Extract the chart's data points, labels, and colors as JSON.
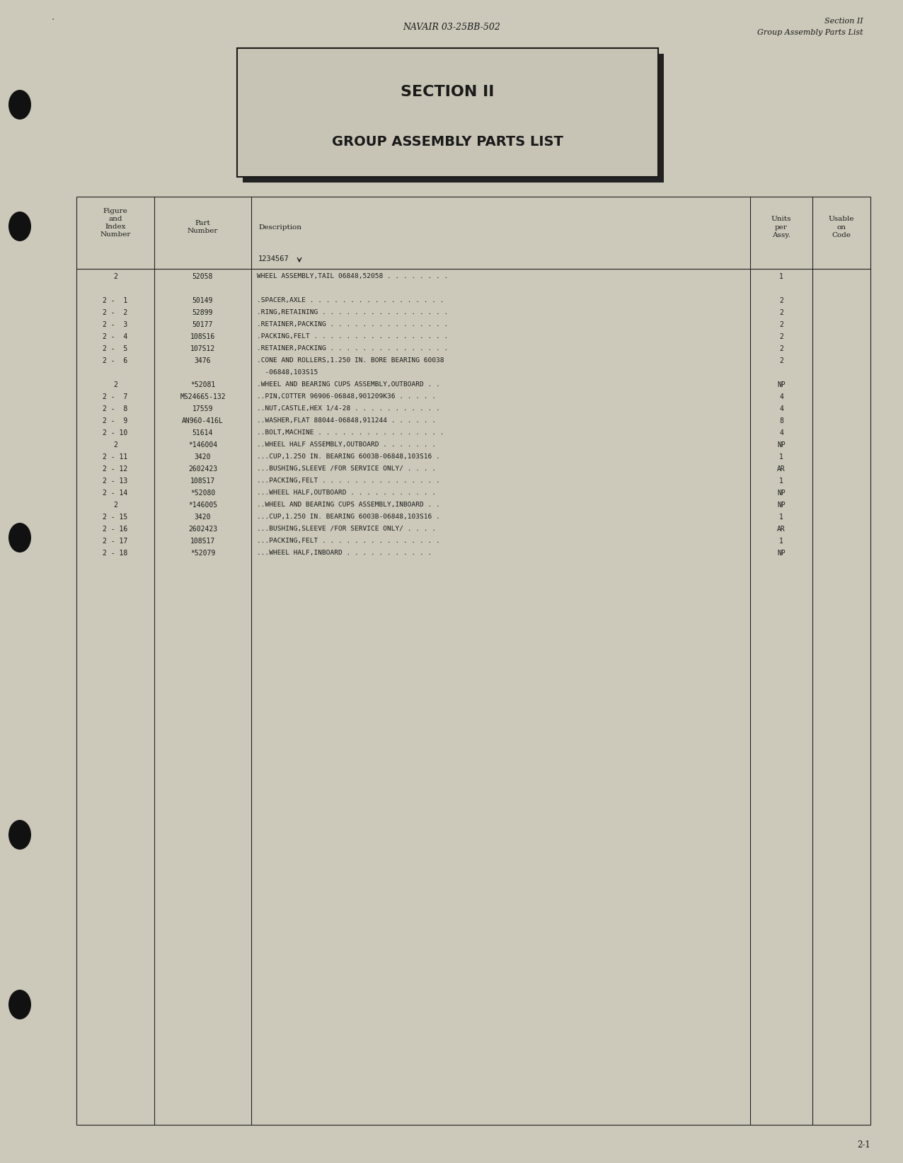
{
  "bg_color": "#ccc9ba",
  "header_center": "NAVAIR 03-25BB-502",
  "header_right_line1": "Section II",
  "header_right_line2": "Group Assembly Parts List",
  "section_box_title": "SECTION II",
  "section_box_subtitle": "GROUP ASSEMBLY PARTS LIST",
  "footer_text": "2-1",
  "table_rows": [
    {
      "fig": "2",
      "part": "52058",
      "desc": "WHEEL ASSEMBLY,TAIL 06848,52058 . . . . . . . .",
      "units": "1",
      "usable": ""
    },
    {
      "fig": "",
      "part": "",
      "desc": "",
      "units": "",
      "usable": ""
    },
    {
      "fig": "2 -  1",
      "part": "50149",
      "desc": ".SPACER,AXLE . . . . . . . . . . . . . . . . .",
      "units": "2",
      "usable": ""
    },
    {
      "fig": "2 -  2",
      "part": "52899",
      "desc": ".RING,RETAINING . . . . . . . . . . . . . . . .",
      "units": "2",
      "usable": ""
    },
    {
      "fig": "2 -  3",
      "part": "50177",
      "desc": ".RETAINER,PACKING . . . . . . . . . . . . . . .",
      "units": "2",
      "usable": ""
    },
    {
      "fig": "2 -  4",
      "part": "108S16",
      "desc": ".PACKING,FELT . . . . . . . . . . . . . . . . .",
      "units": "2",
      "usable": ""
    },
    {
      "fig": "2 -  5",
      "part": "107S12",
      "desc": ".RETAINER,PACKING . . . . . . . . . . . . . . .",
      "units": "2",
      "usable": ""
    },
    {
      "fig": "2 -  6",
      "part": "3476",
      "desc": ".CONE AND ROLLERS,1.250 IN. BORE BEARING 60038",
      "units": "2",
      "usable": ""
    },
    {
      "fig": "",
      "part": "",
      "desc": "  -06848,103S15",
      "units": "",
      "usable": ""
    },
    {
      "fig": "2",
      "part": "*52081",
      "desc": ".WHEEL AND BEARING CUPS ASSEMBLY,OUTBOARD . .",
      "units": "NP",
      "usable": ""
    },
    {
      "fig": "2 -  7",
      "part": "MS24665-132",
      "desc": "..PIN,COTTER 96906-06848,901209K36 . . . . .",
      "units": "4",
      "usable": ""
    },
    {
      "fig": "2 -  8",
      "part": "17559",
      "desc": "..NUT,CASTLE,HEX 1/4-28 . . . . . . . . . . .",
      "units": "4",
      "usable": ""
    },
    {
      "fig": "2 -  9",
      "part": "AN960-416L",
      "desc": "..WASHER,FLAT 88044-06848,911244 . . . . . .",
      "units": "8",
      "usable": ""
    },
    {
      "fig": "2 - 10",
      "part": "51614",
      "desc": "..BOLT,MACHINE . . . . . . . . . . . . . . . .",
      "units": "4",
      "usable": ""
    },
    {
      "fig": "2",
      "part": "*146004",
      "desc": "..WHEEL HALF ASSEMBLY,OUTBOARD . . . . . . .",
      "units": "NP",
      "usable": ""
    },
    {
      "fig": "2 - 11",
      "part": "3420",
      "desc": "...CUP,1.250 IN. BEARING 6003B-06848,103S16 .",
      "units": "1",
      "usable": ""
    },
    {
      "fig": "2 - 12",
      "part": "2602423",
      "desc": "...BUSHING,SLEEVE /FOR SERVICE ONLY/ . . . .",
      "units": "AR",
      "usable": ""
    },
    {
      "fig": "2 - 13",
      "part": "108S17",
      "desc": "...PACKING,FELT . . . . . . . . . . . . . . .",
      "units": "1",
      "usable": ""
    },
    {
      "fig": "2 - 14",
      "part": "*52080",
      "desc": "...WHEEL HALF,OUTBOARD . . . . . . . . . . .",
      "units": "NP",
      "usable": ""
    },
    {
      "fig": "2",
      "part": "*146005",
      "desc": "..WHEEL AND BEARING CUPS ASSEMBLY,INBOARD . .",
      "units": "NP",
      "usable": ""
    },
    {
      "fig": "2 - 15",
      "part": "3420",
      "desc": "...CUP,1.250 IN. BEARING 6003B-06848,103S16 .",
      "units": "1",
      "usable": ""
    },
    {
      "fig": "2 - 16",
      "part": "2602423",
      "desc": "...BUSHING,SLEEVE /FOR SERVICE ONLY/ . . . .",
      "units": "AR",
      "usable": ""
    },
    {
      "fig": "2 - 17",
      "part": "108S17",
      "desc": "...PACKING,FELT . . . . . . . . . . . . . . .",
      "units": "1",
      "usable": ""
    },
    {
      "fig": "2 - 18",
      "part": "*52079",
      "desc": "...WHEEL HALF,INBOARD . . . . . . . . . . .",
      "units": "NP",
      "usable": ""
    }
  ]
}
